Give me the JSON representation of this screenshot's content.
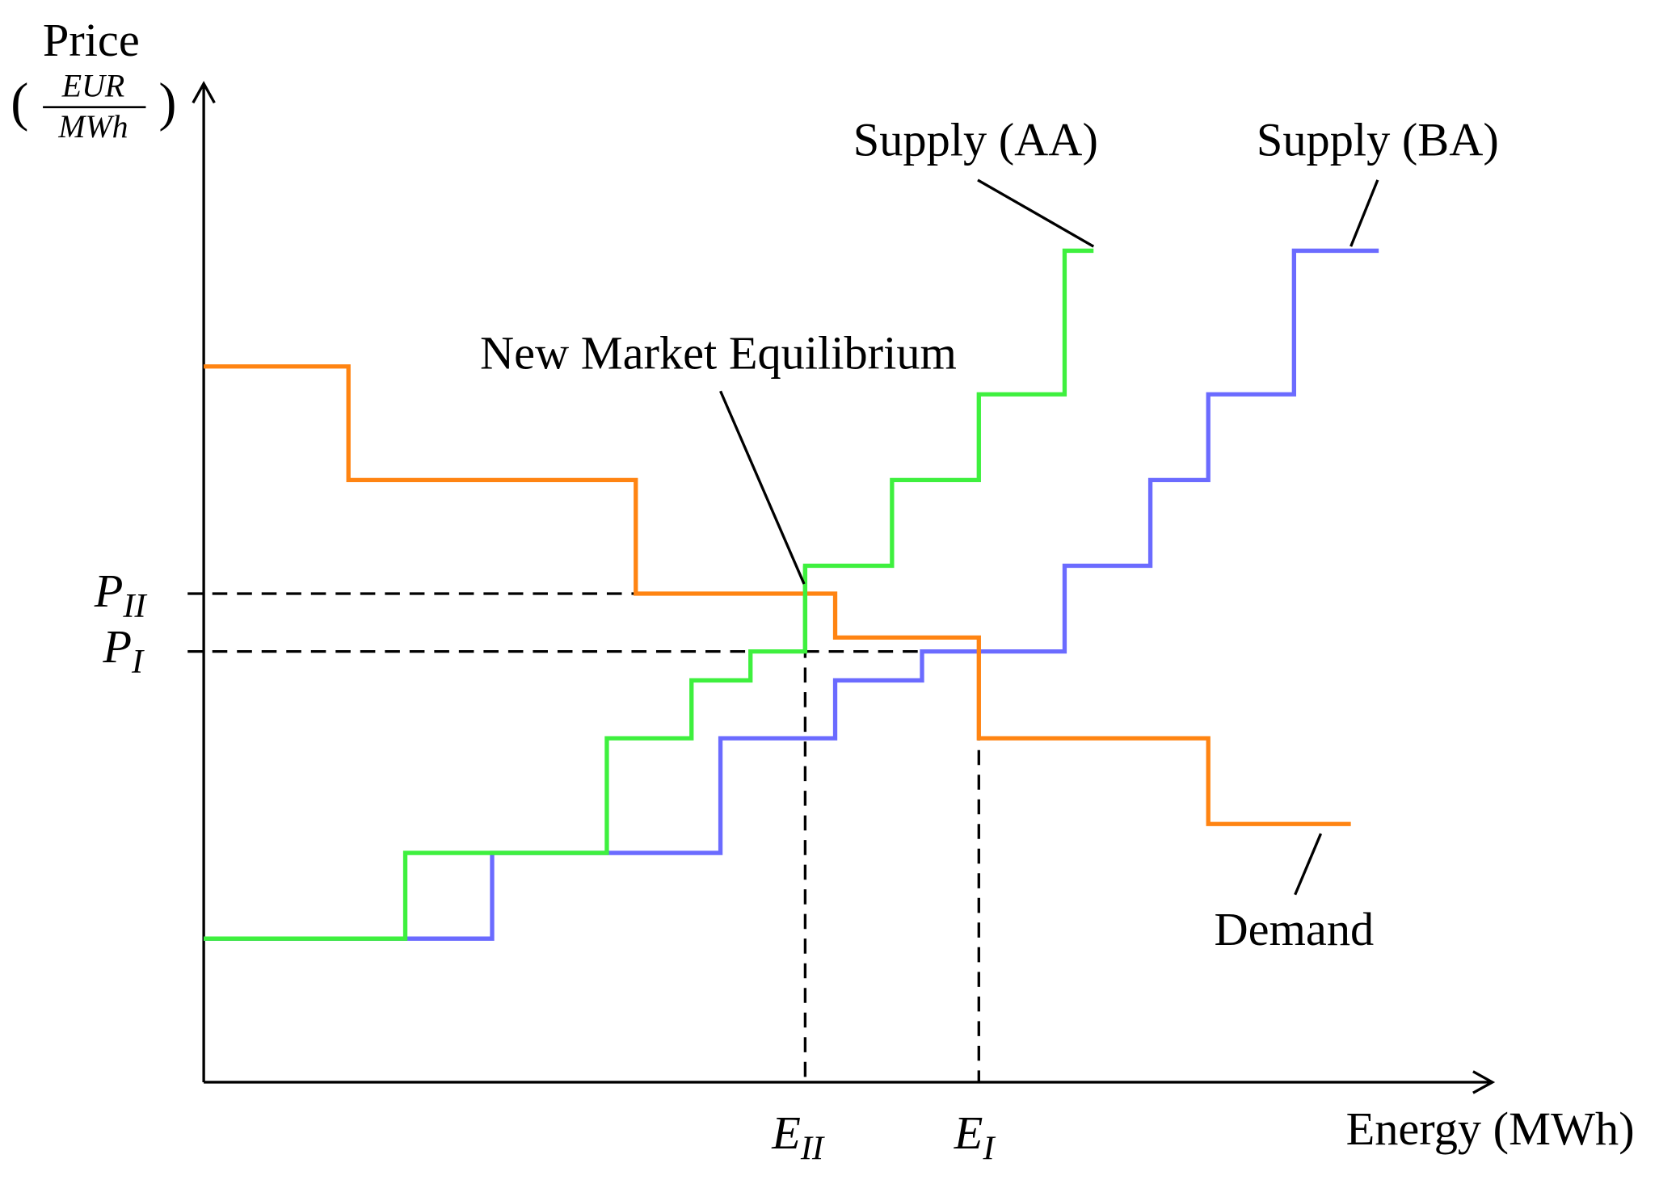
{
  "axes": {
    "y_label": "Price",
    "y_unit_numerator": "EUR",
    "y_unit_denominator": "MWh",
    "x_label": "Energy (MWh)"
  },
  "labels": {
    "supply_aa": "Supply (AA)",
    "supply_ba": "Supply (BA)",
    "equilibrium": "New Market Equilibrium",
    "demand": "Demand"
  },
  "markers": {
    "p_ii": {
      "main": "P",
      "sub": "II"
    },
    "p_i": {
      "main": "P",
      "sub": "I"
    },
    "e_ii": {
      "main": "E",
      "sub": "II"
    },
    "e_i": {
      "main": "E",
      "sub": "I"
    }
  }
}
